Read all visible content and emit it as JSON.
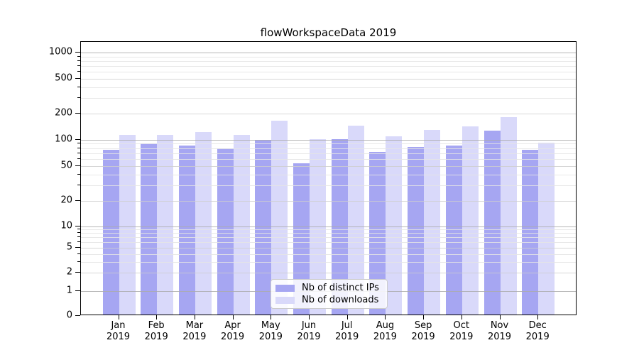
{
  "chart_data": {
    "type": "bar",
    "title": "flowWorkspaceData 2019",
    "categories": [
      "Jan 2019",
      "Feb 2019",
      "Mar 2019",
      "Apr 2019",
      "May 2019",
      "Jun 2019",
      "Jul 2019",
      "Aug 2019",
      "Sep 2019",
      "Oct 2019",
      "Nov 2019",
      "Dec 2019"
    ],
    "series": [
      {
        "name": "Nb of distinct IPs",
        "color": "#a6a6f2",
        "values": [
          77,
          90,
          86,
          80,
          99,
          54,
          101,
          72,
          82,
          85,
          127,
          77
        ]
      },
      {
        "name": "Nb of downloads",
        "color": "#d9d9fa",
        "values": [
          113,
          113,
          122,
          113,
          164,
          101,
          144,
          110,
          129,
          141,
          180,
          92
        ]
      }
    ],
    "yscale": "symlog",
    "yticks": [
      0,
      1,
      2,
      5,
      10,
      20,
      50,
      100,
      200,
      500,
      1000
    ],
    "ylim": [
      0,
      1325
    ],
    "xlabel": "",
    "ylabel": "",
    "grid": true,
    "legend_position": "lower center"
  }
}
